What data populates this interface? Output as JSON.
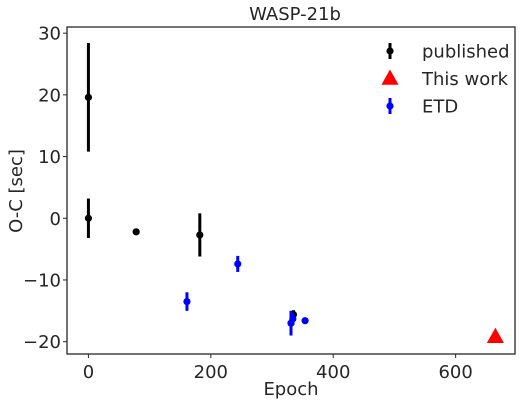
{
  "chart_data": {
    "type": "scatter",
    "title": "WASP-21b",
    "xlabel": "Epoch",
    "ylabel": "O-C [sec]",
    "xlim": [
      -35,
      697
    ],
    "ylim": [
      -22,
      31
    ],
    "xticks": [
      0,
      200,
      400,
      600
    ],
    "yticks": [
      -20,
      -10,
      0,
      10,
      20,
      30
    ],
    "xtick_labels": [
      "0",
      "200",
      "400",
      "600"
    ],
    "ytick_labels": [
      "−20",
      "−10",
      "0",
      "10",
      "20",
      "30"
    ],
    "grid": false,
    "legend_position": "top-right",
    "series": [
      {
        "name": "published",
        "marker": "circle",
        "color": "#000000",
        "points": [
          {
            "x": 0,
            "y": 19.6,
            "err": 8.8
          },
          {
            "x": 0,
            "y": 0.0,
            "err": 3.2
          },
          {
            "x": 78,
            "y": -2.2,
            "err": 0
          },
          {
            "x": 182,
            "y": -2.7,
            "err": 3.5
          },
          {
            "x": 335,
            "y": -15.6,
            "err": 0.7
          }
        ]
      },
      {
        "name": "This work",
        "marker": "triangle",
        "color": "#ff0000",
        "points": [
          {
            "x": 665,
            "y": -19.2,
            "err": 0
          }
        ]
      },
      {
        "name": "ETD",
        "marker": "circle",
        "color": "#0000ff",
        "points": [
          {
            "x": 161,
            "y": -13.5,
            "err": 1.5
          },
          {
            "x": 244,
            "y": -7.4,
            "err": 1.3
          },
          {
            "x": 331,
            "y": -17.0,
            "err": 2.0
          },
          {
            "x": 334,
            "y": -16.3,
            "err": 1.0
          },
          {
            "x": 354,
            "y": -16.6,
            "err": 0.5
          }
        ]
      }
    ]
  }
}
